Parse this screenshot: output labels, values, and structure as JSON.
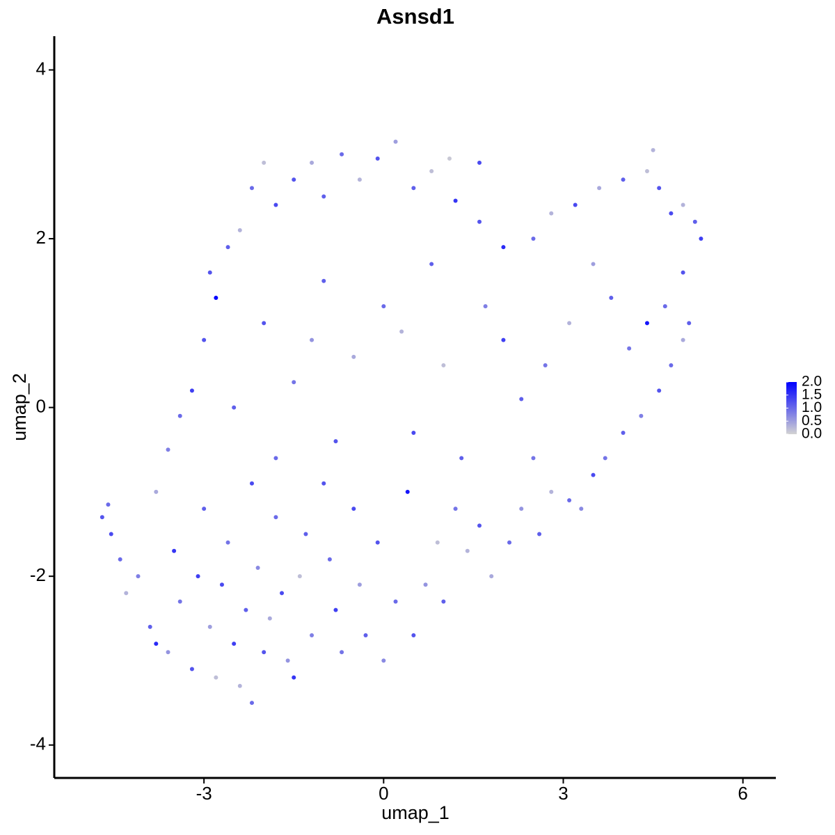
{
  "chart_data": {
    "type": "scatter",
    "title": "Asnsd1",
    "x_label": "umap_1",
    "y_label": "umap_2",
    "xlim": [
      -5.5,
      6.55
    ],
    "ylim": [
      -4.39,
      4.4
    ],
    "xticks": [
      -3,
      0,
      3,
      6
    ],
    "yticks": [
      -4,
      -2,
      0,
      2,
      4
    ],
    "color_low": "#d3d3d3",
    "color_high": "#0000ff",
    "clim": [
      0,
      2
    ],
    "cticks": [
      {
        "value": 0,
        "label": "0.0"
      },
      {
        "value": 0.5,
        "label": "0.5"
      },
      {
        "value": 1,
        "label": "1.0"
      },
      {
        "value": 1.5,
        "label": "1.5"
      },
      {
        "value": 2,
        "label": "2.0"
      }
    ],
    "x": [
      -4.7,
      -4.6,
      -4.55,
      -4.4,
      -4.3,
      -4.1,
      -3.9,
      -3.8,
      -3.6,
      -3.5,
      -3.4,
      -3.2,
      -3.1,
      -3.0,
      -2.9,
      -2.8,
      -2.7,
      -2.6,
      -2.5,
      -2.4,
      -2.3,
      -2.2,
      -2.1,
      -2.0,
      -1.9,
      -1.8,
      -1.7,
      -1.6,
      -1.5,
      -1.4,
      -1.3,
      -1.2,
      -1.0,
      -0.9,
      -0.8,
      -0.7,
      -0.5,
      -0.4,
      -0.3,
      -0.1,
      0.0,
      0.2,
      0.4,
      0.5,
      0.7,
      0.9,
      1.0,
      1.2,
      1.4,
      1.6,
      1.8,
      2.1,
      2.3,
      2.6,
      2.8,
      3.1,
      3.3,
      3.5,
      3.7,
      4.0,
      4.3,
      4.6,
      4.8,
      5.0,
      5.1,
      -3.0,
      -3.2,
      -3.4,
      -3.6,
      -3.8,
      -2.8,
      -2.9,
      -2.6,
      -2.4,
      -2.2,
      -2.0,
      -1.8,
      -1.5,
      -1.2,
      -1.0,
      -0.7,
      -0.4,
      -0.1,
      0.2,
      0.5,
      0.8,
      1.1,
      1.2,
      1.6,
      1.6,
      2.0,
      2.5,
      2.8,
      3.2,
      3.6,
      4.0,
      4.4,
      4.5,
      4.6,
      4.8,
      5.0,
      5.2,
      5.3,
      5.0,
      4.7,
      4.4,
      4.1,
      3.8,
      3.5,
      3.1,
      2.7,
      2.3,
      2.0,
      1.7,
      -2.0,
      -1.5,
      -1.0,
      -0.5,
      0.0,
      0.5,
      1.0,
      -2.5,
      -1.8,
      -0.8,
      0.3,
      1.3,
      2.5,
      -2.2,
      -1.2,
      0.8
    ],
    "y": [
      -1.3,
      -1.15,
      -1.5,
      -1.8,
      -2.2,
      -2.0,
      -2.6,
      -2.8,
      -2.9,
      -1.7,
      -2.3,
      -3.1,
      -2.0,
      -1.2,
      -2.6,
      -3.2,
      -2.1,
      -1.6,
      -2.8,
      -3.3,
      -2.4,
      -3.5,
      -1.9,
      -2.9,
      -2.5,
      -1.3,
      -2.2,
      -3.0,
      -3.2,
      -2.0,
      -1.5,
      -2.7,
      -0.9,
      -1.8,
      -2.4,
      -2.9,
      -1.2,
      -2.1,
      -2.7,
      -1.6,
      -3.0,
      -2.3,
      -1.0,
      -2.7,
      -2.1,
      -1.6,
      -2.3,
      -1.2,
      -1.7,
      -1.4,
      -2.0,
      -1.6,
      -1.2,
      -1.5,
      -1.0,
      -1.1,
      -1.2,
      -0.8,
      -0.6,
      -0.3,
      -0.1,
      0.2,
      0.5,
      0.8,
      1.0,
      0.8,
      0.2,
      -0.1,
      -0.5,
      -1.0,
      1.3,
      1.6,
      1.9,
      2.1,
      2.6,
      2.9,
      2.4,
      2.7,
      2.9,
      2.5,
      3.0,
      2.7,
      2.95,
      3.15,
      2.6,
      2.8,
      2.95,
      2.45,
      2.9,
      2.2,
      1.9,
      2.0,
      2.3,
      2.4,
      2.6,
      2.7,
      2.8,
      3.05,
      2.6,
      2.3,
      2.4,
      2.2,
      2.0,
      1.6,
      1.2,
      1.0,
      0.7,
      1.3,
      1.7,
      1.0,
      0.5,
      0.1,
      0.8,
      1.2,
      1.0,
      0.3,
      1.5,
      0.6,
      1.2,
      -0.3,
      0.5,
      0.0,
      -0.6,
      -0.4,
      0.9,
      -0.6,
      -0.6,
      -0.9,
      0.8,
      1.7
    ],
    "values": [
      1.2,
      1.0,
      1.3,
      1.0,
      0.3,
      0.8,
      1.1,
      1.6,
      0.6,
      1.5,
      0.9,
      1.2,
      1.4,
      1.1,
      0.5,
      0.2,
      1.3,
      0.9,
      1.4,
      0.3,
      1.1,
      1.0,
      0.7,
      1.2,
      0.4,
      1.0,
      1.3,
      0.6,
      1.5,
      0.2,
      1.1,
      0.8,
      1.2,
      1.0,
      1.4,
      0.9,
      1.3,
      0.5,
      1.1,
      1.2,
      0.7,
      1.0,
      1.8,
      1.2,
      0.6,
      0.2,
      1.1,
      0.9,
      0.3,
      1.2,
      0.4,
      1.0,
      0.6,
      1.1,
      0.3,
      1.0,
      0.7,
      1.3,
      0.9,
      1.1,
      0.8,
      1.2,
      1.0,
      0.4,
      1.1,
      1.2,
      1.4,
      1.0,
      0.8,
      0.4,
      2.0,
      1.2,
      1.1,
      0.3,
      1.0,
      0.2,
      1.3,
      1.2,
      0.4,
      1.1,
      1.0,
      0.3,
      1.2,
      0.5,
      1.1,
      0.2,
      0.1,
      1.5,
      1.3,
      1.2,
      1.6,
      1.0,
      0.3,
      1.3,
      0.4,
      1.1,
      0.2,
      0.3,
      1.2,
      1.3,
      0.3,
      1.1,
      1.4,
      1.2,
      1.0,
      1.8,
      0.9,
      1.1,
      0.5,
      0.3,
      0.9,
      1.1,
      1.4,
      0.8,
      1.2,
      0.9,
      1.1,
      0.4,
      1.0,
      1.3,
      0.2,
      1.1,
      1.0,
      1.2,
      0.3,
      1.1,
      0.9,
      1.3,
      0.6,
      1.1
    ]
  }
}
